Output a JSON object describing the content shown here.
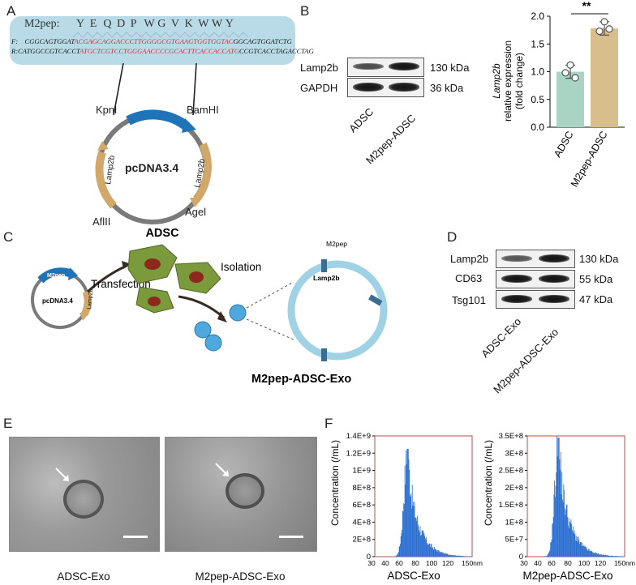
{
  "panels": {
    "a": "A",
    "b": "B",
    "c": "C",
    "d": "D",
    "e": "E",
    "f": "F"
  },
  "panel_a": {
    "peptide_label": "M2pep:",
    "peptide_residues": [
      "Y",
      "E",
      "Q",
      "D",
      "P",
      "W",
      "G",
      "V",
      "K",
      "W",
      "W",
      "Y"
    ],
    "fwd_prefix": "F:",
    "fwd_left": "CGGCAGTGGAT",
    "fwd_insert": "ACGAGCAGGACCCTTGGGGCGTGAAGTGGTGGTAC",
    "fwd_right": "GGCAGTGGATCTG",
    "rev_prefix": "R:",
    "rev_left": "CATGGCCGTCACCT",
    "rev_insert": "ATGCTCGTCCTGGGAACCCCGCACTTCACCACCATG",
    "rev_right": "CCGTCACCTAGACCTAG",
    "plasmid_name": "pcDNA3.4",
    "site_kpnl": "Kpnl",
    "site_bamhi": "BamHI",
    "site_afliii": "AflII",
    "site_agel": "Agel",
    "gene_m2pep": "M2pep",
    "gene_lamp2b_left": "Lamp2b",
    "gene_lamp2b_right": "Lamp2b",
    "colors": {
      "box": "#b9dbe8",
      "m2pep": "#1f74b8",
      "lamp2b": "#d2a86a",
      "backbone": "#7a7a7a",
      "insert": "#e0263a"
    }
  },
  "panel_b": {
    "rows": [
      {
        "label": "Lamp2b",
        "size": "130 kDa"
      },
      {
        "label": "GAPDH",
        "size": "36 kDa"
      }
    ],
    "lanes": [
      "ADSC",
      "M2pep-ADSC"
    ],
    "significance": "**"
  },
  "chart_data": {
    "type": "bar",
    "categories": [
      "ADSC",
      "M2pep-ADSC"
    ],
    "values": [
      1.0,
      1.78
    ],
    "errors": [
      0.12,
      0.12
    ],
    "points": [
      [
        1.12,
        0.98,
        0.89
      ],
      [
        1.9,
        1.73,
        1.77
      ]
    ],
    "ylabel_italic": "Lamp2b",
    "ylabel_rest": [
      "relative expression",
      "(fold change)"
    ],
    "ylim": [
      0,
      2.0
    ],
    "yticks": [
      "0.0",
      "0.5",
      "1.0",
      "1.5",
      "2.0"
    ],
    "colors": [
      "#a9d3c3",
      "#d8be8c"
    ]
  },
  "panel_c": {
    "cell_label": "ADSC",
    "step_transfection": "Transfection",
    "step_isolation": "Isolation",
    "exo_label": "M2pep-ADSC-Exo",
    "m2pep_tag": "M2pep",
    "lamp2b_tag": "Lamp2b",
    "plasmid_name": "pcDNA3.4",
    "gene_m2pep": "M2pep",
    "gene_lamp2b": "Lamp2b"
  },
  "panel_d": {
    "rows": [
      {
        "label": "Lamp2b",
        "size": "130 kDa"
      },
      {
        "label": "CD63",
        "size": "55 kDa"
      },
      {
        "label": "Tsg101",
        "size": "47 kDa"
      }
    ],
    "lanes": [
      "ADSC-Exo",
      "M2pep-ADSC-Exo"
    ]
  },
  "panel_e": {
    "captions": [
      "ADSC-Exo",
      "M2pep-ADSC-Exo"
    ]
  },
  "chart_data_f": [
    {
      "type": "histogram",
      "caption": "ADSC-Exo",
      "ylabel": "Concentration (/mL)",
      "yticks": [
        "0",
        "2E+8",
        "4E+8",
        "6E+8",
        "8E+8",
        "1E+9",
        "1.2E+9",
        "1.4E+9"
      ],
      "xticks": [
        "30",
        "40",
        "60",
        "80",
        "100",
        "120",
        "150nm"
      ],
      "peak_x": 70,
      "peak_y": 1250000000.0
    },
    {
      "type": "histogram",
      "caption": "M2pep-ADSC-Exo",
      "ylabel": "Concentration (/mL)",
      "yticks": [
        "0",
        "5E+7",
        "1E+8",
        "1.5E+8",
        "2E+8",
        "2.5E+8",
        "3E+8",
        "3.5E+8"
      ],
      "xticks": [
        "30",
        "40",
        "60",
        "80",
        "100",
        "120",
        "150nm"
      ],
      "peak_x": 68,
      "peak_y": 345000000.0
    }
  ]
}
